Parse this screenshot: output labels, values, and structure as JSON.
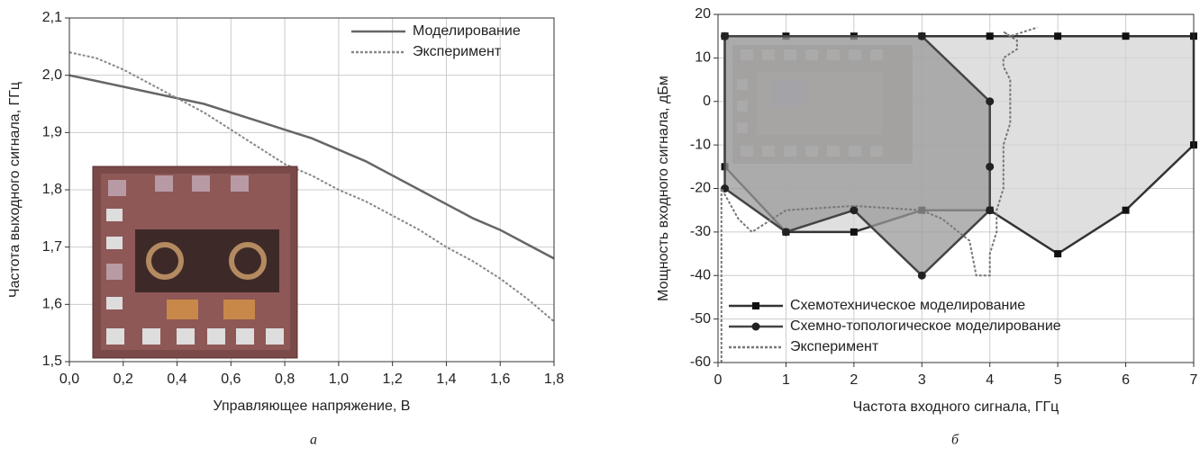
{
  "chart_data": [
    {
      "type": "line",
      "caption": "а",
      "x_label": "Управляющее напряжение, В",
      "y_label": "Частота выходного сигнала, ГГц",
      "x": [
        0,
        0.1,
        0.2,
        0.3,
        0.4,
        0.5,
        0.6,
        0.7,
        0.8,
        0.9,
        1.0,
        1.1,
        1.2,
        1.3,
        1.4,
        1.5,
        1.6,
        1.7,
        1.8
      ],
      "series": [
        {
          "name": "Моделирование",
          "color": "#666666",
          "style": "solid",
          "values": [
            2.0,
            1.99,
            1.98,
            1.97,
            1.96,
            1.95,
            1.935,
            1.92,
            1.905,
            1.89,
            1.87,
            1.85,
            1.825,
            1.8,
            1.775,
            1.75,
            1.73,
            1.705,
            1.68
          ]
        },
        {
          "name": "Эксперимент",
          "color": "#888888",
          "style": "dashed",
          "values": [
            2.04,
            2.03,
            2.01,
            1.985,
            1.96,
            1.935,
            1.905,
            1.875,
            1.845,
            1.825,
            1.8,
            1.78,
            1.755,
            1.73,
            1.7,
            1.675,
            1.645,
            1.61,
            1.57
          ]
        }
      ],
      "xlim": [
        0,
        1.8
      ],
      "xticks": [
        {
          "value": 0,
          "label": "0,0"
        },
        {
          "value": 0.2,
          "label": "0,2"
        },
        {
          "value": 0.4,
          "label": "0,4"
        },
        {
          "value": 0.6,
          "label": "0,6"
        },
        {
          "value": 0.8,
          "label": "0,8"
        },
        {
          "value": 1.0,
          "label": "1,0"
        },
        {
          "value": 1.2,
          "label": "1,2"
        },
        {
          "value": 1.4,
          "label": "1,4"
        },
        {
          "value": 1.6,
          "label": "1,6"
        },
        {
          "value": 1.8,
          "label": "1,8"
        }
      ],
      "ylim": [
        1.5,
        2.1
      ],
      "yticks": [
        {
          "value": 1.5,
          "label": "1,5"
        },
        {
          "value": 1.6,
          "label": "1,6"
        },
        {
          "value": 1.7,
          "label": "1,7"
        },
        {
          "value": 1.8,
          "label": "1,8"
        },
        {
          "value": 1.9,
          "label": "1,9"
        },
        {
          "value": 2.0,
          "label": "2,0"
        },
        {
          "value": 2.1,
          "label": "2,1"
        }
      ],
      "grid": true,
      "legend": "upper-right"
    },
    {
      "type": "area",
      "caption": "б",
      "x_label": "Частота входного сигнала, ГГц",
      "y_label": "Мощность входного сигнала, дБм",
      "series": [
        {
          "name": "Схемотехническое моделирование",
          "color": "#333333",
          "fill": "#d4d4d4",
          "style": "solid",
          "marker": "square",
          "x": [
            0.1,
            1,
            2,
            3,
            4,
            5,
            6,
            7,
            7,
            6,
            5,
            4,
            3,
            2,
            1,
            0.1,
            0.1
          ],
          "values": [
            15,
            15,
            15,
            15,
            15,
            15,
            15,
            15,
            -10,
            -25,
            -35,
            -25,
            -25,
            -30,
            -30,
            -15,
            15
          ]
        },
        {
          "name": "Схемно-топологическое моделирование",
          "color": "#444444",
          "fill": "#9a9a9a",
          "style": "solid",
          "marker": "circle",
          "x": [
            0.1,
            3,
            4,
            4,
            4,
            3,
            2,
            1,
            0.1,
            0.1
          ],
          "values": [
            15,
            15,
            0,
            -15,
            -25,
            -40,
            -25,
            -30,
            -20,
            15
          ]
        },
        {
          "name": "Эксперимент",
          "color": "#777777",
          "style": "dashed",
          "x": [
            0.05,
            0.05,
            0.3,
            0.5,
            1,
            2,
            3,
            3.3,
            3.7,
            3.8,
            4,
            4,
            4.1,
            4.1,
            4.2,
            4.2,
            4.3,
            4.3,
            4.2,
            4.2,
            4.4,
            4.4,
            4.2,
            4.3,
            4.5,
            4.7
          ],
          "values": [
            -60,
            -20,
            -27,
            -30,
            -25,
            -24,
            -25,
            -27,
            -32,
            -40,
            -40,
            -35,
            -30,
            -25,
            -20,
            -10,
            -5,
            5,
            8,
            10,
            12,
            14,
            16,
            15,
            16,
            17
          ]
        }
      ],
      "xlim": [
        0,
        7
      ],
      "xticks": [
        0,
        1,
        2,
        3,
        4,
        5,
        6,
        7
      ],
      "ylim": [
        -60,
        20
      ],
      "yticks": [
        -60,
        -50,
        -40,
        -30,
        -20,
        -10,
        0,
        10,
        20
      ],
      "grid": true,
      "legend": "lower-left"
    }
  ]
}
